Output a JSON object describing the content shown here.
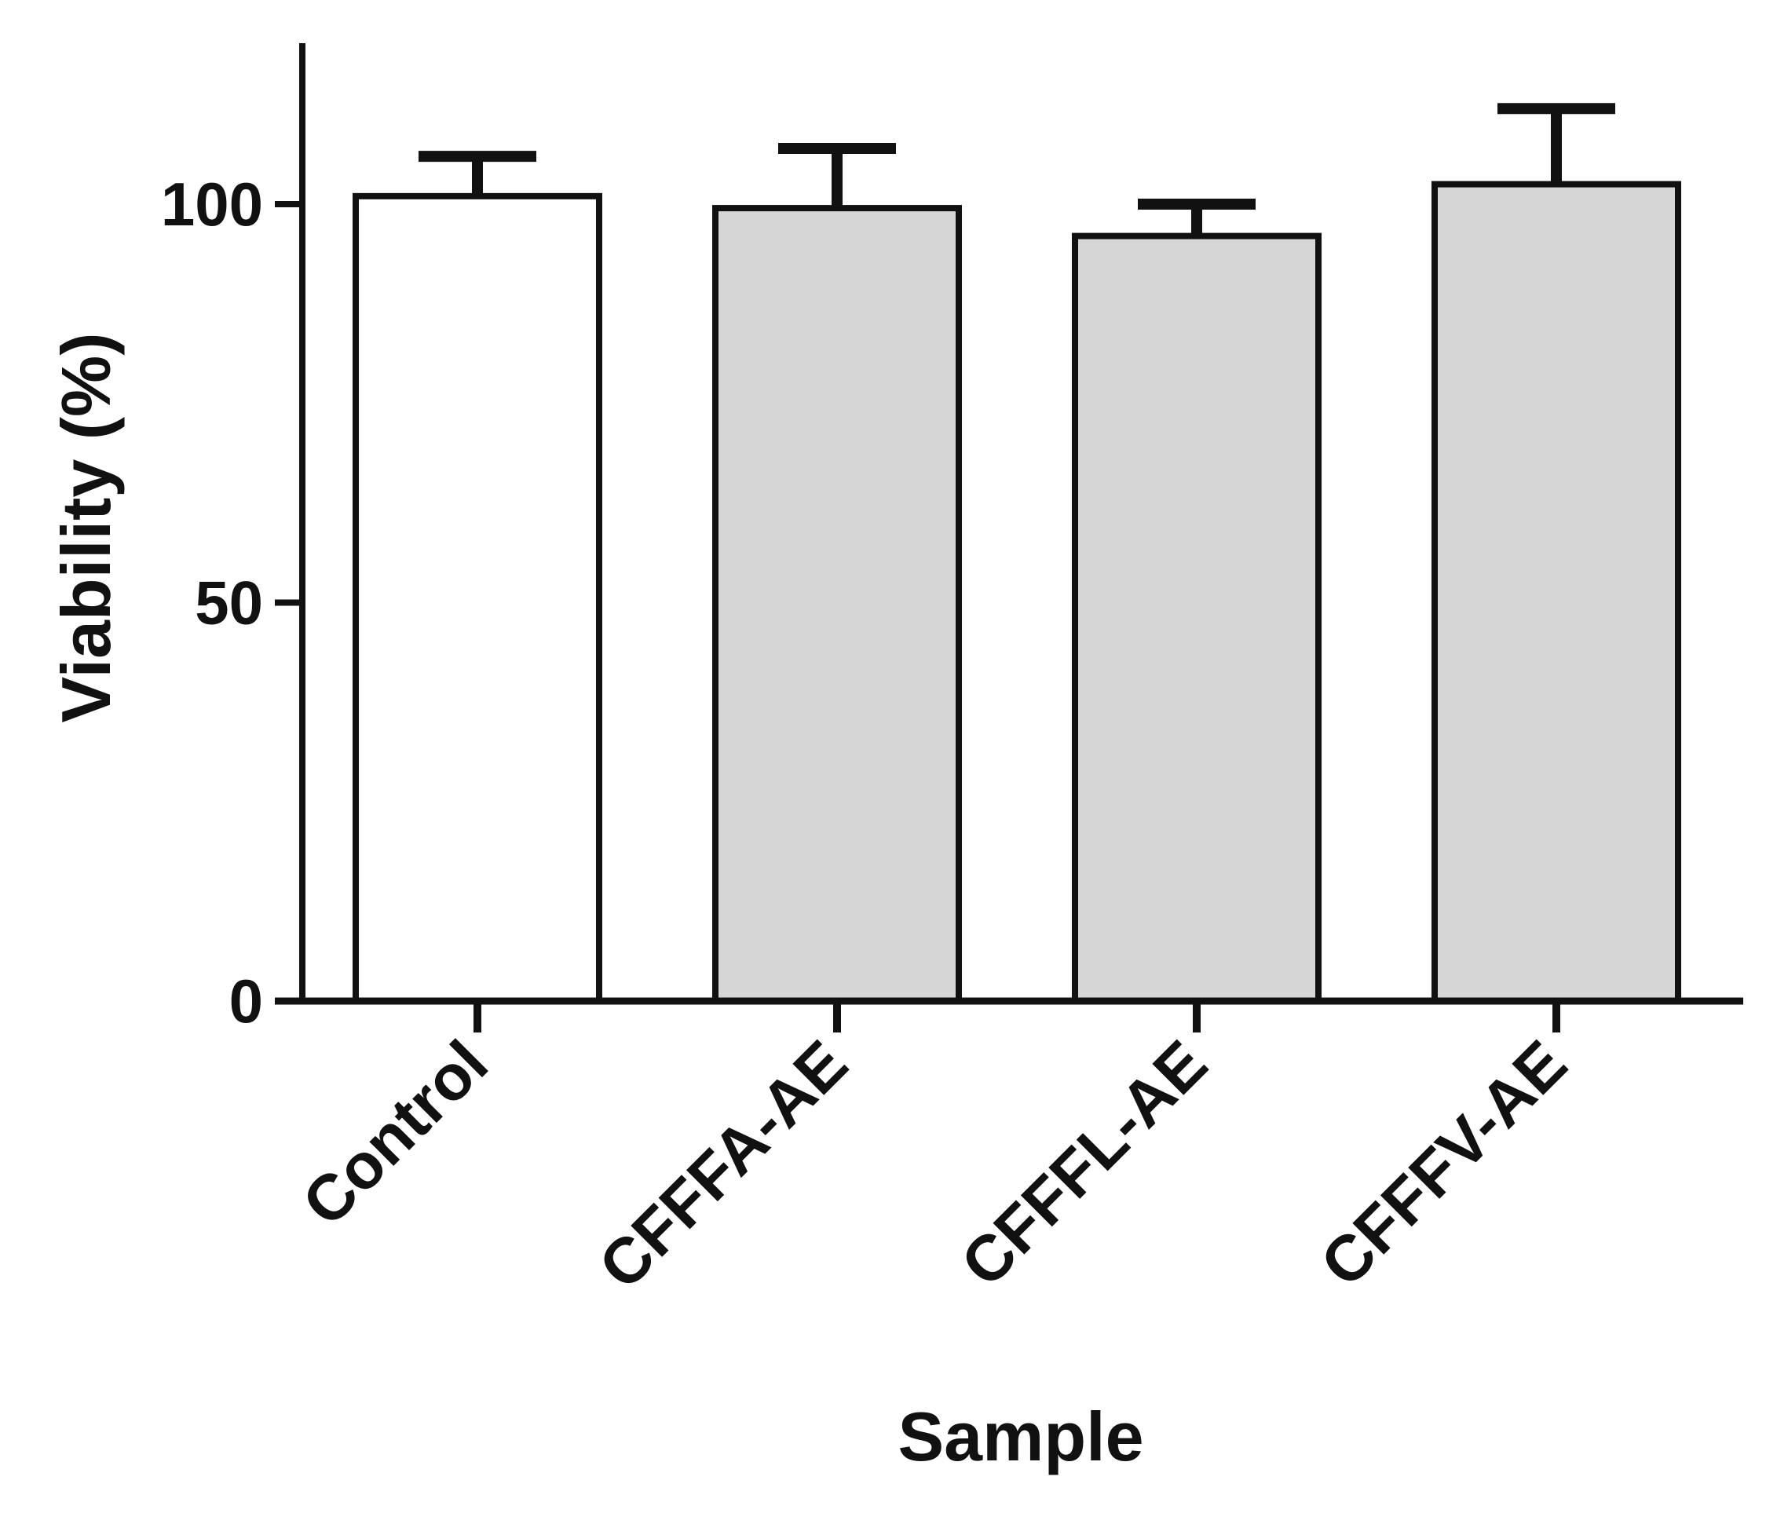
{
  "chart_data": {
    "type": "bar",
    "xlabel": "Sample",
    "ylabel": "Viability (%)",
    "categories": [
      "Control",
      "CFFFA-AE",
      "CFFFL-AE",
      "CFFFV-AE"
    ],
    "values": [
      101,
      99.5,
      96,
      102.5
    ],
    "error_upper": [
      5,
      7.5,
      4,
      9.5
    ],
    "yticks": [
      0,
      50,
      100
    ],
    "ytick_labels": [
      "0",
      "50",
      "100"
    ],
    "ylim": [
      0,
      120
    ],
    "grid": false,
    "legend": "none",
    "colors": {
      "control_fill": "#ffffff",
      "sample_fill": "#d6d6d6",
      "stroke": "#111111"
    },
    "bar_fills": [
      "#ffffff",
      "#d6d6d6",
      "#d6d6d6",
      "#d6d6d6"
    ]
  }
}
